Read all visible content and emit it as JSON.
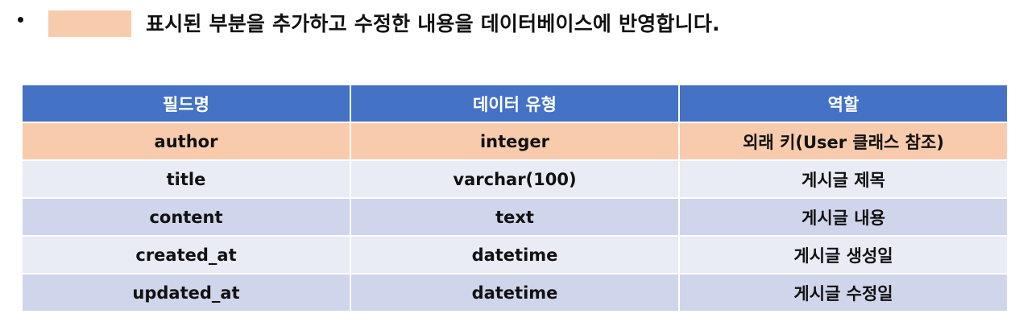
{
  "legend": {
    "text": "표시된 부분을 추가하고 수정한 내용을 데이터베이스에 반영합니다.",
    "swatch_color": "#F8CBAD"
  },
  "table": {
    "header_color": "#4472C4",
    "highlight_color": "#F8CBAD",
    "band_light_color": "#E9EBF5",
    "band_dark_color": "#CFD5EA",
    "headers": [
      "필드명",
      "데이터 유형",
      "역할"
    ],
    "rows": [
      {
        "field": "author",
        "type": "integer",
        "role": "외래 키(User 클래스 참조)",
        "highlighted": true
      },
      {
        "field": "title",
        "type": "varchar(100)",
        "role": "게시글 제목",
        "highlighted": false
      },
      {
        "field": "content",
        "type": "text",
        "role": "게시글 내용",
        "highlighted": false
      },
      {
        "field": "created_at",
        "type": "datetime",
        "role": "게시글 생성일",
        "highlighted": false
      },
      {
        "field": "updated_at",
        "type": "datetime",
        "role": "게시글 수정일",
        "highlighted": false
      }
    ]
  }
}
